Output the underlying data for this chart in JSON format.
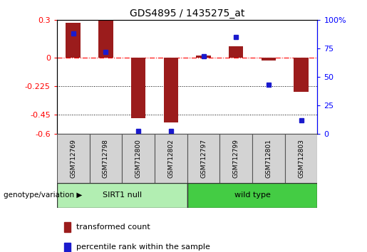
{
  "title": "GDS4895 / 1435275_at",
  "samples": [
    "GSM712769",
    "GSM712798",
    "GSM712800",
    "GSM712802",
    "GSM712797",
    "GSM712799",
    "GSM712801",
    "GSM712803"
  ],
  "transformed_count": [
    0.28,
    0.295,
    -0.48,
    -0.51,
    0.02,
    0.09,
    -0.02,
    -0.27
  ],
  "percentile_rank": [
    88,
    72,
    2,
    2,
    68,
    85,
    43,
    12
  ],
  "groups": [
    {
      "label": "SIRT1 null",
      "start": 0,
      "end": 4,
      "color": "#B2EEB2"
    },
    {
      "label": "wild type",
      "start": 4,
      "end": 8,
      "color": "#44CC44"
    }
  ],
  "bar_color": "#9B1C1C",
  "dot_color": "#1A1ACD",
  "ylim_left": [
    -0.6,
    0.3
  ],
  "ylim_right": [
    0,
    100
  ],
  "yticks_left": [
    0.3,
    0.0,
    -0.225,
    -0.45,
    -0.6
  ],
  "yticks_right": [
    100,
    75,
    50,
    25,
    0
  ],
  "dotted_lines": [
    -0.225,
    -0.45
  ],
  "group_label_prefix": "genotype/variation",
  "legend": [
    {
      "label": "transformed count",
      "color": "#9B1C1C"
    },
    {
      "label": "percentile rank within the sample",
      "color": "#1A1ACD"
    }
  ],
  "bar_width": 0.45,
  "dot_size": 5,
  "title_fontsize": 10,
  "tick_fontsize": 8,
  "sample_fontsize": 6.5,
  "group_fontsize": 8,
  "legend_fontsize": 8
}
